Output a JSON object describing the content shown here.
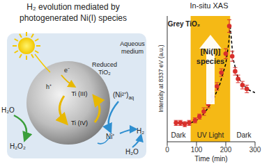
{
  "diagram": {
    "title": [
      "H₂ evolution mediated by",
      "photogenerated Ni(I) species"
    ],
    "particle": [
      "Reduced",
      "TiO₂"
    ],
    "medium": [
      "Aqueous",
      "medium"
    ],
    "states": [
      "Ti (III)",
      "Ti (IV)"
    ],
    "carriers": [
      "e⁻",
      "h⁺"
    ],
    "left": [
      "H₂O",
      "H₂O₂"
    ],
    "nickel": {
      "text": "(Ni²⁺)",
      "sub": "aq"
    },
    "right": [
      "Ni⁺",
      "H₂",
      "H₂O"
    ]
  },
  "chart_data": {
    "type": "scatter",
    "title": "In-situ XAS",
    "xlabel": "Time (min)",
    "ylabel": "Intensity at 8337 eV (a.u.)",
    "x": [
      30,
      45,
      60,
      75,
      95,
      110,
      125,
      140,
      155,
      170,
      185,
      200,
      212,
      222,
      232,
      242,
      257,
      272
    ],
    "values": [
      0.15,
      0.15,
      0.14,
      0.15,
      0.17,
      0.2,
      0.24,
      0.3,
      0.36,
      0.44,
      0.55,
      0.7,
      0.92,
      0.68,
      0.56,
      0.5,
      0.45,
      0.42
    ],
    "errors": [
      0.02,
      0.02,
      0.02,
      0.02,
      0.02,
      0.02,
      0.03,
      0.03,
      0.03,
      0.03,
      0.03,
      0.04,
      0.05,
      0.04,
      0.03,
      0.03,
      0.03,
      0.03
    ],
    "color": "#d9302c",
    "marker": "circle",
    "xlim": [
      0,
      300
    ],
    "xticks": [
      0,
      100,
      200,
      300
    ],
    "ylim": [
      0,
      1
    ],
    "yticks": [],
    "tick_labels": "x",
    "fit": {
      "x": [
        30,
        80,
        100,
        120,
        140,
        160,
        180,
        200,
        210,
        215,
        225,
        240,
        260,
        280,
        300
      ],
      "values": [
        0.15,
        0.15,
        0.17,
        0.21,
        0.27,
        0.35,
        0.46,
        0.62,
        0.78,
        0.93,
        0.66,
        0.52,
        0.45,
        0.41,
        0.39
      ],
      "color": "#000000",
      "line_style": "dashed"
    },
    "shaded": {
      "x": [
        80,
        215
      ],
      "label": "UV Light",
      "color": "#f5b915"
    },
    "annotations": [
      "Dark",
      "Dark",
      "Grey TiO₂",
      "[Ni(I)]",
      "species"
    ]
  }
}
